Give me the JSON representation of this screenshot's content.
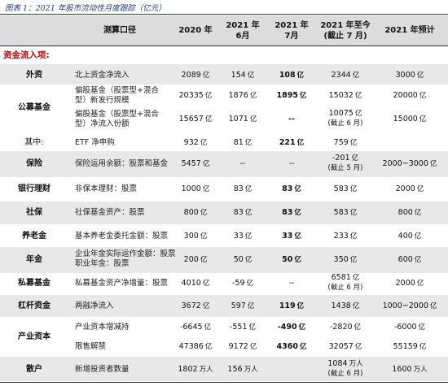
{
  "caption": "图表 1：2021 年股市流动性月度跟踪（亿元）",
  "header": {
    "col_caliber": "测算口径",
    "col_2020": "2020 年",
    "col_jun_l1": "2021 年",
    "col_jun_l2": "6月",
    "col_jul_l1": "2021 年",
    "col_jul_l2": "7月",
    "col_ytd_l1": "2021 年至今",
    "col_ytd_l2": "(截止 7 月)",
    "col_est": "2021 年预计"
  },
  "section_title": "资金流入项:",
  "unit": "亿",
  "rows": {
    "waizi": {
      "cat": "外资",
      "caliber": "北上资金净流入",
      "v2020": "2089",
      "jun": "154",
      "jul": "108",
      "ytd": "2344",
      "est": "3000"
    },
    "gm1": {
      "cat": "公募基金",
      "caliber_l1": "偏股基金（股票型+混合",
      "caliber_l2": "型）新发行规模",
      "v2020": "20335",
      "jun": "1876",
      "jul": "1895",
      "ytd": "15032",
      "est": "20000"
    },
    "gm2": {
      "caliber_l1": "偏股基金（股票型+混合",
      "caliber_l2": "型）净流入份额",
      "v2020": "15657",
      "jun": "1071",
      "jul": "--",
      "ytd_l1": "10075",
      "ytd_l2": "(截止 6 月)",
      "est": "15000"
    },
    "etf": {
      "cat": "其中:",
      "caliber": "ETF 净申购",
      "v2020": "932",
      "jun": "81",
      "jul": "221",
      "ytd": "759",
      "est": ""
    },
    "baoxian": {
      "cat": "保险",
      "caliber": "保险运用余额：股票和基金",
      "v2020": "5457",
      "jun": "--",
      "jul": "--",
      "ytd_l1": "-201",
      "ytd_l2": "(截止 5 月)",
      "est": "2000~3000"
    },
    "yhlc": {
      "cat": "银行理财",
      "caliber": "非保本理财：股票",
      "v2020": "1000",
      "jun": "83",
      "jul": "83",
      "ytd": "583",
      "est": "2000"
    },
    "shebao": {
      "cat": "社保",
      "caliber": "社保基金资产：股票",
      "v2020": "800",
      "jun": "83",
      "jul": "83",
      "ytd": "583",
      "est": "800"
    },
    "yanglao": {
      "cat": "养老金",
      "caliber": "基本养老金委托金额：股票",
      "v2020": "300",
      "jun": "33",
      "jul": "33",
      "ytd": "233",
      "est": "400"
    },
    "nianjin": {
      "cat": "年金",
      "caliber_l1": "企业年金实际运作金额：股票",
      "caliber_l2": "职业年金：股票",
      "v2020": "200",
      "jun": "50",
      "jul": "50",
      "ytd": "350",
      "est": "600"
    },
    "smjj": {
      "cat": "私募基金",
      "caliber": "私募基金资产净增量：股票",
      "v2020": "4010",
      "jun": "-59",
      "jul": "--",
      "ytd_l1": "6581",
      "ytd_l2": "(截止 6 月)",
      "est": "2000"
    },
    "ganggan": {
      "cat": "杠杆资金",
      "caliber": "两融净流入",
      "v2020": "3672",
      "jun": "597",
      "jul": "119",
      "ytd": "1438",
      "est": "1000~2000"
    },
    "cy1": {
      "cat": "产业资本",
      "caliber": "产业资本增减持",
      "v2020": "-6645",
      "jun": "-551",
      "jul": "-490",
      "ytd": "-2820",
      "est": "-6000"
    },
    "cy2": {
      "caliber": "限售解禁",
      "v2020": "47386",
      "jun": "9172",
      "jul": "4360",
      "ytd": "32057",
      "est": "55159"
    },
    "sanhu": {
      "cat": "散户",
      "caliber": "新增投资者数量",
      "v2020": "1802",
      "jun": "156",
      "jul": "",
      "ytd_l1": "1084",
      "ytd_l2": "(截止 6 月)",
      "est": "1600",
      "unit": "万人"
    }
  }
}
